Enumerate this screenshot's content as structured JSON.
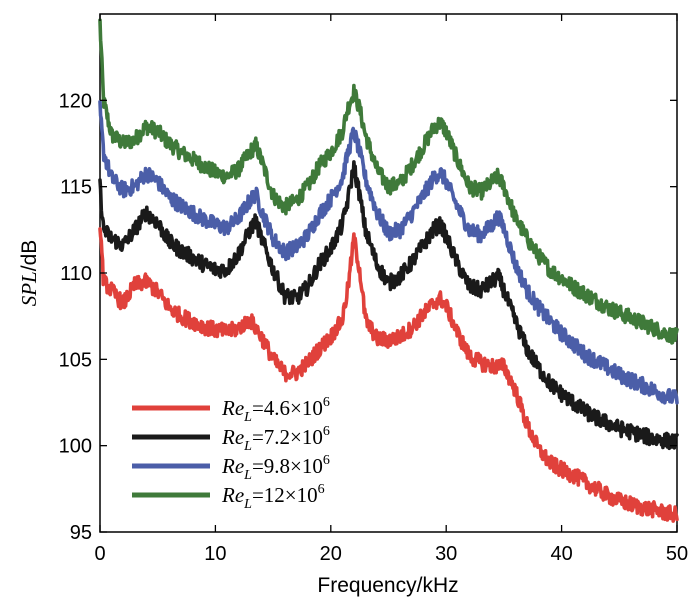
{
  "chart_data": {
    "type": "line",
    "title": "",
    "xlabel": "Frequency/kHz",
    "ylabel": {
      "italic": "SPL",
      "rest": "/dB"
    },
    "xlim": [
      0,
      50
    ],
    "ylim": [
      95,
      125
    ],
    "xticks": [
      0,
      10,
      20,
      30,
      40,
      50
    ],
    "yticks": [
      95,
      100,
      105,
      110,
      115,
      120
    ],
    "grid": false,
    "legend_position": "bottom-left",
    "series": [
      {
        "name": "ReL=12×10^6",
        "label": {
          "re": "Re",
          "sub": "L",
          "mid": "=12×10",
          "sup": "6"
        },
        "color": "#3f7a3a",
        "x": [
          0,
          0.3,
          1,
          2,
          3,
          4,
          5,
          6,
          7,
          8,
          9,
          10,
          11,
          12,
          13,
          13.5,
          14,
          15,
          16,
          17,
          18,
          19,
          20,
          21,
          21.5,
          22,
          22.5,
          23,
          24,
          25,
          26,
          27,
          28,
          29,
          29.5,
          30,
          31,
          32,
          33,
          34,
          34.5,
          35,
          36,
          37,
          38,
          39,
          40,
          41,
          42,
          43,
          44,
          45,
          46,
          47,
          48,
          49,
          50
        ],
        "y": [
          124.5,
          120,
          118,
          117.5,
          117.7,
          118.5,
          118.2,
          117.5,
          117,
          116.6,
          116.2,
          115.8,
          115.6,
          116,
          117,
          117.4,
          116.5,
          114.5,
          113.8,
          114.2,
          115,
          116.2,
          117,
          118.2,
          119.6,
          120.5,
          119.5,
          118,
          116,
          115,
          115.2,
          116.2,
          117.3,
          118.5,
          118.7,
          118.2,
          116.5,
          115,
          114.7,
          115.3,
          115.6,
          115,
          113.2,
          112,
          111,
          110.2,
          109.7,
          109.2,
          108.8,
          108.4,
          108,
          107.7,
          107.4,
          107.1,
          106.8,
          106.5,
          106.3
        ]
      },
      {
        "name": "ReL=9.8×10^6",
        "label": {
          "re": "Re",
          "sub": "L",
          "mid": "=9.8×10",
          "sup": "6"
        },
        "color": "#4b5ea8",
        "x": [
          0,
          0.3,
          1,
          2,
          3,
          4,
          5,
          6,
          7,
          8,
          9,
          10,
          11,
          12,
          13,
          13.5,
          14,
          15,
          16,
          17,
          18,
          19,
          20,
          21,
          21.5,
          22,
          22.5,
          23,
          24,
          25,
          26,
          27,
          28,
          29,
          29.5,
          30,
          31,
          32,
          33,
          34,
          34.5,
          35,
          36,
          37,
          38,
          39,
          40,
          41,
          42,
          43,
          44,
          45,
          46,
          47,
          48,
          49,
          50
        ],
        "y": [
          119.5,
          117,
          115.5,
          114.8,
          115,
          115.8,
          115.3,
          114.4,
          113.9,
          113.5,
          113.1,
          112.8,
          112.6,
          113.2,
          114.2,
          114.6,
          113.6,
          112,
          111.2,
          111.5,
          112.2,
          113.4,
          114.3,
          115.5,
          117,
          118.2,
          117,
          115.5,
          113.5,
          112.3,
          112.5,
          113.4,
          114.5,
          115.6,
          115.8,
          115.3,
          113.8,
          112.5,
          112.2,
          112.8,
          113.3,
          112.6,
          110.5,
          109,
          108,
          107.2,
          106.5,
          105.9,
          105.3,
          104.9,
          104.5,
          104.1,
          103.8,
          103.5,
          103.2,
          102.9,
          102.7
        ]
      },
      {
        "name": "ReL=7.2×10^6",
        "label": {
          "re": "Re",
          "sub": "L",
          "mid": "=7.2×10",
          "sup": "6"
        },
        "color": "#1a1a1a",
        "x": [
          0,
          0.3,
          1,
          2,
          3,
          4,
          5,
          6,
          7,
          8,
          9,
          10,
          11,
          12,
          13,
          13.5,
          14,
          15,
          16,
          17,
          18,
          19,
          20,
          21,
          21.5,
          22,
          22.5,
          23,
          24,
          25,
          26,
          27,
          28,
          29,
          29.5,
          30,
          31,
          32,
          33,
          34,
          34.5,
          35,
          36,
          37,
          38,
          39,
          40,
          41,
          42,
          43,
          44,
          45,
          46,
          47,
          48,
          49,
          50
        ],
        "y": [
          115,
          112.5,
          112,
          111.6,
          112.5,
          113.5,
          112.9,
          111.8,
          111.3,
          110.9,
          110.5,
          110.2,
          110.2,
          111.1,
          112.5,
          113,
          112,
          110.2,
          108.7,
          108.5,
          109.2,
          110.5,
          111.4,
          112.8,
          114.3,
          116.2,
          114.5,
          112.5,
          110.5,
          109.4,
          109.8,
          110.6,
          111.6,
          112.6,
          112.8,
          112.1,
          110.5,
          109.2,
          109,
          109.5,
          109.8,
          109,
          107.2,
          105.6,
          104.5,
          103.6,
          103,
          102.5,
          102,
          101.6,
          101.3,
          101,
          100.8,
          100.6,
          100.4,
          100.3,
          100.2
        ]
      },
      {
        "name": "ReL=4.6×10^6",
        "label": {
          "re": "Re",
          "sub": "L",
          "mid": "=4.6×10",
          "sup": "6"
        },
        "color": "#e0413b",
        "x": [
          0,
          0.3,
          1,
          2,
          3,
          4,
          5,
          6,
          7,
          8,
          9,
          10,
          11,
          12,
          13,
          14,
          15,
          16,
          17,
          18,
          19,
          20,
          21,
          21.5,
          22,
          22.5,
          23,
          24,
          25,
          26,
          27,
          28,
          29,
          29.5,
          30,
          31,
          32,
          33,
          34,
          35,
          36,
          37,
          38,
          39,
          40,
          41,
          42,
          43,
          44,
          45,
          46,
          47,
          48,
          49,
          50
        ],
        "y": [
          113,
          109.5,
          109,
          108.2,
          109.3,
          109.5,
          108.9,
          108,
          107.5,
          107.2,
          106.9,
          106.7,
          106.6,
          106.8,
          107.3,
          106.3,
          105,
          104.2,
          104.2,
          104.8,
          105.6,
          106.3,
          107.3,
          109.2,
          112,
          110.2,
          107.3,
          106.2,
          106.1,
          106.3,
          106.8,
          107.6,
          108.3,
          108.5,
          108.1,
          106.5,
          105.2,
          104.8,
          104.6,
          104.6,
          103.2,
          101.2,
          99.8,
          99,
          98.6,
          98.3,
          97.9,
          97.5,
          97.1,
          96.8,
          96.6,
          96.4,
          96.3,
          96.1,
          96
        ]
      }
    ],
    "legend_order": [
      3,
      2,
      1,
      0
    ]
  }
}
